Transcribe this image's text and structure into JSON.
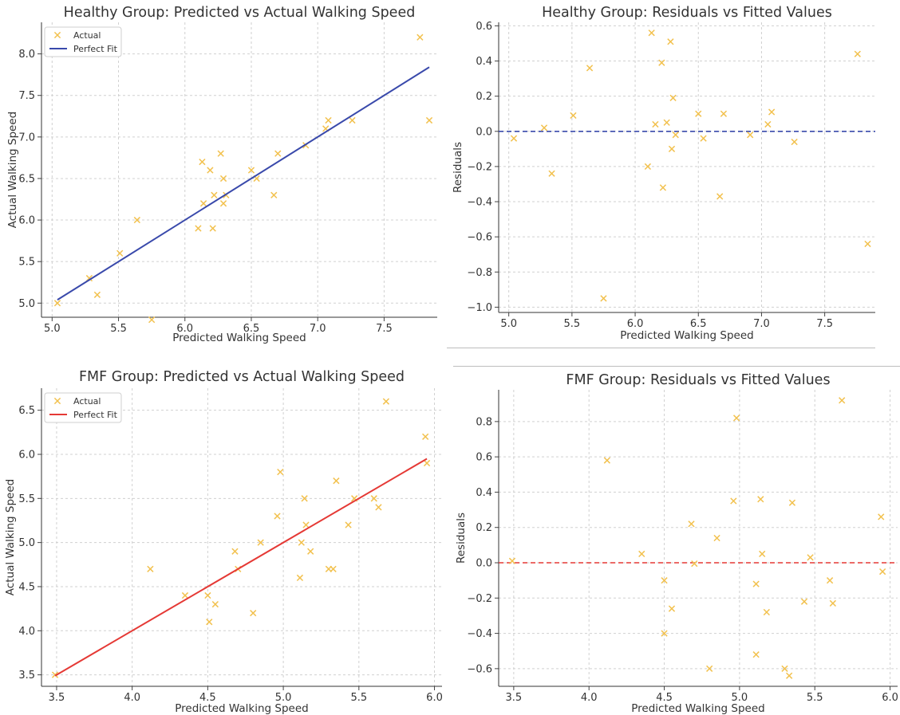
{
  "chart_data": [
    {
      "type": "scatter",
      "title": "Healthy Group: Predicted vs Actual Walking Speed",
      "xlabel": "Predicted Walking Speed",
      "ylabel": "Actual Walking Speed",
      "xlim": [
        4.92,
        7.9
      ],
      "ylim": [
        4.83,
        8.38
      ],
      "xticks": [
        "5.0",
        "5.5",
        "6.0",
        "6.5",
        "7.0",
        "7.5"
      ],
      "yticks": [
        "5.0",
        "5.5",
        "6.0",
        "6.5",
        "7.0",
        "7.5",
        "8.0"
      ],
      "grid": true,
      "legend": {
        "position": "top-left",
        "entries": [
          "Actual",
          "Perfect Fit"
        ]
      },
      "series": [
        {
          "name": "Actual",
          "kind": "scatter",
          "marker": "x",
          "color": "#f2c14e",
          "points": [
            [
              5.04,
              5.0
            ],
            [
              5.28,
              5.3
            ],
            [
              5.34,
              5.1
            ],
            [
              5.51,
              5.6
            ],
            [
              5.64,
              6.0
            ],
            [
              5.75,
              4.8
            ],
            [
              6.1,
              5.9
            ],
            [
              6.13,
              6.7
            ],
            [
              6.14,
              6.2
            ],
            [
              6.19,
              6.6
            ],
            [
              6.21,
              5.9
            ],
            [
              6.22,
              6.3
            ],
            [
              6.27,
              6.8
            ],
            [
              6.29,
              6.2
            ],
            [
              6.29,
              6.5
            ],
            [
              6.31,
              6.3
            ],
            [
              6.5,
              6.6
            ],
            [
              6.54,
              6.5
            ],
            [
              6.67,
              6.3
            ],
            [
              6.7,
              6.8
            ],
            [
              6.91,
              6.9
            ],
            [
              7.06,
              7.1
            ],
            [
              7.08,
              7.2
            ],
            [
              7.26,
              7.2
            ],
            [
              7.77,
              8.2
            ],
            [
              7.84,
              7.2
            ]
          ]
        },
        {
          "name": "Perfect Fit",
          "kind": "line",
          "color": "#3949ab",
          "points": [
            [
              5.04,
              5.04
            ],
            [
              7.84,
              7.84
            ]
          ]
        }
      ]
    },
    {
      "type": "scatter",
      "title": "Healthy Group: Residuals vs Fitted Values",
      "xlabel": "Predicted Walking Speed",
      "ylabel": "Residuals",
      "xlim": [
        4.92,
        7.9
      ],
      "ylim": [
        -1.03,
        0.62
      ],
      "xticks": [
        "5.0",
        "5.5",
        "6.0",
        "6.5",
        "7.0",
        "7.5"
      ],
      "yticks": [
        "−1.0",
        "−0.8",
        "−0.6",
        "−0.4",
        "−0.2",
        "0.0",
        "0.2",
        "0.4",
        "0.6"
      ],
      "grid": true,
      "reference_line": {
        "y": 0,
        "style": "dashed",
        "color": "#3949ab"
      },
      "series": [
        {
          "kind": "scatter",
          "marker": "x",
          "color": "#f2c14e",
          "points": [
            [
              5.04,
              -0.04
            ],
            [
              5.28,
              0.02
            ],
            [
              5.34,
              -0.24
            ],
            [
              5.51,
              0.09
            ],
            [
              5.64,
              0.36
            ],
            [
              5.75,
              -0.95
            ],
            [
              6.1,
              -0.2
            ],
            [
              6.13,
              0.56
            ],
            [
              6.16,
              0.04
            ],
            [
              6.21,
              0.39
            ],
            [
              6.22,
              -0.32
            ],
            [
              6.25,
              0.05
            ],
            [
              6.28,
              0.51
            ],
            [
              6.29,
              -0.1
            ],
            [
              6.3,
              0.19
            ],
            [
              6.32,
              -0.02
            ],
            [
              6.5,
              0.1
            ],
            [
              6.54,
              -0.04
            ],
            [
              6.67,
              -0.37
            ],
            [
              6.7,
              0.1
            ],
            [
              6.91,
              -0.02
            ],
            [
              7.05,
              0.04
            ],
            [
              7.08,
              0.11
            ],
            [
              7.26,
              -0.06
            ],
            [
              7.76,
              0.44
            ],
            [
              7.84,
              -0.64
            ]
          ]
        }
      ]
    },
    {
      "type": "scatter",
      "title": "FMF Group: Predicted vs Actual Walking Speed",
      "xlabel": "Predicted Walking Speed",
      "ylabel": "Actual Walking Speed",
      "xlim": [
        3.4,
        6.05
      ],
      "ylim": [
        3.37,
        6.75
      ],
      "xticks": [
        "3.5",
        "4.0",
        "4.5",
        "5.0",
        "5.5",
        "6.0"
      ],
      "yticks": [
        "3.5",
        "4.0",
        "4.5",
        "5.0",
        "5.5",
        "6.0",
        "6.5"
      ],
      "grid": true,
      "legend": {
        "position": "top-left",
        "entries": [
          "Actual",
          "Perfect Fit"
        ]
      },
      "series": [
        {
          "name": "Actual",
          "kind": "scatter",
          "marker": "x",
          "color": "#f2c14e",
          "points": [
            [
              3.49,
              3.5
            ],
            [
              4.12,
              4.7
            ],
            [
              4.35,
              4.4
            ],
            [
              4.5,
              4.4
            ],
            [
              4.51,
              4.1
            ],
            [
              4.55,
              4.3
            ],
            [
              4.68,
              4.9
            ],
            [
              4.7,
              4.7
            ],
            [
              4.8,
              4.2
            ],
            [
              4.85,
              5.0
            ],
            [
              4.96,
              5.3
            ],
            [
              4.98,
              5.8
            ],
            [
              5.11,
              4.6
            ],
            [
              5.12,
              5.0
            ],
            [
              5.14,
              5.5
            ],
            [
              5.15,
              5.2
            ],
            [
              5.18,
              4.9
            ],
            [
              5.3,
              4.7
            ],
            [
              5.33,
              4.7
            ],
            [
              5.35,
              5.7
            ],
            [
              5.43,
              5.2
            ],
            [
              5.47,
              5.5
            ],
            [
              5.6,
              5.5
            ],
            [
              5.63,
              5.4
            ],
            [
              5.68,
              6.6
            ],
            [
              5.94,
              6.2
            ],
            [
              5.95,
              5.9
            ]
          ]
        },
        {
          "name": "Perfect Fit",
          "kind": "line",
          "color": "#e53935",
          "points": [
            [
              3.49,
              3.49
            ],
            [
              5.95,
              5.95
            ]
          ]
        }
      ]
    },
    {
      "type": "scatter",
      "title": "FMF Group: Residuals vs Fitted Values",
      "xlabel": "Predicted Walking Speed",
      "ylabel": "Residuals",
      "xlim": [
        3.4,
        6.05
      ],
      "ylim": [
        -0.7,
        0.98
      ],
      "xticks": [
        "3.5",
        "4.0",
        "4.5",
        "5.0",
        "5.5",
        "6.0"
      ],
      "yticks": [
        "−0.6",
        "−0.4",
        "−0.2",
        "0.0",
        "0.2",
        "0.4",
        "0.6",
        "0.8"
      ],
      "grid": true,
      "reference_line": {
        "y": 0,
        "style": "dashed",
        "color": "#e53935"
      },
      "series": [
        {
          "kind": "scatter",
          "marker": "x",
          "color": "#f2c14e",
          "points": [
            [
              3.49,
              0.01
            ],
            [
              4.12,
              0.58
            ],
            [
              4.35,
              0.05
            ],
            [
              4.5,
              -0.1
            ],
            [
              4.5,
              -0.4
            ],
            [
              4.55,
              -0.26
            ],
            [
              4.68,
              0.22
            ],
            [
              4.7,
              -0.005
            ],
            [
              4.8,
              -0.6
            ],
            [
              4.85,
              0.14
            ],
            [
              4.96,
              0.35
            ],
            [
              4.98,
              0.82
            ],
            [
              5.11,
              -0.12
            ],
            [
              5.11,
              -0.52
            ],
            [
              5.14,
              0.36
            ],
            [
              5.15,
              0.05
            ],
            [
              5.18,
              -0.28
            ],
            [
              5.3,
              -0.6
            ],
            [
              5.33,
              -0.64
            ],
            [
              5.35,
              0.34
            ],
            [
              5.43,
              -0.22
            ],
            [
              5.47,
              0.03
            ],
            [
              5.6,
              -0.1
            ],
            [
              5.62,
              -0.23
            ],
            [
              5.68,
              0.92
            ],
            [
              5.94,
              0.26
            ],
            [
              5.95,
              -0.05
            ]
          ]
        }
      ]
    }
  ]
}
